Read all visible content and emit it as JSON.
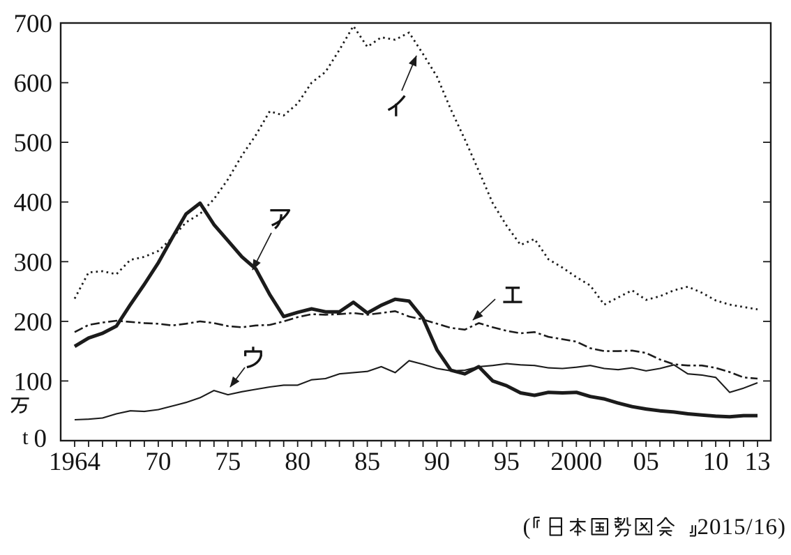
{
  "figure": {
    "source": "(『日本国勢図会』 2015/16)",
    "y_axis": {
      "unit_top": "万",
      "unit_bottom": "t",
      "origin_label": "0",
      "tick_values": [
        100,
        200,
        300,
        400,
        500,
        600,
        700
      ],
      "right_tick_values": [
        100,
        200,
        300,
        400,
        500,
        600
      ]
    },
    "x_axis": {
      "minor_tick_start": 1964,
      "minor_tick_end": 2013,
      "labels": [
        {
          "year": 1964,
          "text": "1964"
        },
        {
          "year": 1970,
          "text": "70"
        },
        {
          "year": 1975,
          "text": "75"
        },
        {
          "year": 1980,
          "text": "80"
        },
        {
          "year": 1985,
          "text": "85"
        },
        {
          "year": 1990,
          "text": "90"
        },
        {
          "year": 1995,
          "text": "95"
        },
        {
          "year": 2000,
          "text": "2000"
        },
        {
          "year": 2005,
          "text": "05"
        },
        {
          "year": 2010,
          "text": "10"
        },
        {
          "year": 2013,
          "text": "13"
        }
      ]
    }
  },
  "chart_data": {
    "type": "line",
    "title": "",
    "xlabel": "",
    "ylabel": "万t",
    "xlim": [
      1964,
      2013
    ],
    "ylim": [
      0,
      700
    ],
    "grid": false,
    "legend": "inline-annotations",
    "years": [
      1964,
      1965,
      1966,
      1967,
      1968,
      1969,
      1970,
      1971,
      1972,
      1973,
      1974,
      1975,
      1976,
      1977,
      1978,
      1979,
      1980,
      1981,
      1982,
      1983,
      1984,
      1985,
      1986,
      1987,
      1988,
      1989,
      1990,
      1991,
      1992,
      1993,
      1994,
      1995,
      1996,
      1997,
      1998,
      1999,
      2000,
      2001,
      2002,
      2003,
      2004,
      2005,
      2006,
      2007,
      2008,
      2009,
      2010,
      2011,
      2012,
      2013
    ],
    "series": [
      {
        "id": "a",
        "label": "ア",
        "style": "thick-solid",
        "values": [
          158,
          172,
          180,
          192,
          228,
          262,
          298,
          340,
          380,
          398,
          362,
          335,
          308,
          288,
          245,
          208,
          215,
          221,
          216,
          216,
          232,
          214,
          227,
          237,
          234,
          205,
          152,
          118,
          112,
          124,
          100,
          92,
          80,
          76,
          81,
          80,
          81,
          74,
          70,
          63,
          57,
          53,
          50,
          48,
          45,
          43,
          41,
          40,
          42,
          42
        ]
      },
      {
        "id": "i",
        "label": "イ",
        "style": "dotted",
        "values": [
          238,
          282,
          284,
          279,
          303,
          308,
          318,
          340,
          366,
          380,
          405,
          438,
          478,
          512,
          552,
          545,
          565,
          600,
          618,
          655,
          695,
          660,
          676,
          672,
          684,
          648,
          610,
          555,
          505,
          452,
          398,
          360,
          328,
          338,
          304,
          290,
          274,
          260,
          228,
          240,
          252,
          236,
          242,
          252,
          258,
          248,
          235,
          228,
          224,
          220
        ]
      },
      {
        "id": "u",
        "label": "ウ",
        "style": "thin-solid",
        "values": [
          35,
          36,
          38,
          45,
          50,
          49,
          52,
          58,
          64,
          72,
          84,
          77,
          82,
          86,
          90,
          93,
          93,
          102,
          104,
          112,
          114,
          116,
          124,
          114,
          134,
          128,
          121,
          117,
          118,
          124,
          126,
          129,
          127,
          126,
          122,
          121,
          123,
          126,
          121,
          119,
          122,
          117,
          121,
          127,
          112,
          110,
          106,
          81,
          88,
          97
        ]
      },
      {
        "id": "e",
        "label": "エ",
        "style": "dash-dot",
        "values": [
          182,
          194,
          198,
          201,
          199,
          197,
          196,
          193,
          196,
          200,
          197,
          192,
          190,
          193,
          194,
          200,
          207,
          212,
          211,
          212,
          214,
          211,
          214,
          217,
          208,
          203,
          196,
          189,
          186,
          197,
          190,
          184,
          180,
          182,
          174,
          170,
          166,
          155,
          150,
          150,
          151,
          147,
          136,
          128,
          126,
          126,
          122,
          115,
          106,
          104
        ]
      }
    ],
    "annotations": [
      {
        "id": "a",
        "label": "ア",
        "lx": 401,
        "ly": 313,
        "ax1": 389,
        "ay1": 334,
        "ax2": 362,
        "ay2": 387
      },
      {
        "id": "i",
        "label": "イ",
        "lx": 569,
        "ly": 151,
        "ax1": 576,
        "ay1": 130,
        "ax2": 597,
        "ay2": 80
      },
      {
        "id": "u",
        "label": "ウ",
        "lx": 363,
        "ly": 512,
        "ax1": 351,
        "ay1": 527,
        "ax2": 330,
        "ay2": 555
      },
      {
        "id": "e",
        "label": "エ",
        "lx": 735,
        "ly": 423,
        "ax1": 710,
        "ay1": 429,
        "ax2": 678,
        "ay2": 459
      }
    ]
  }
}
